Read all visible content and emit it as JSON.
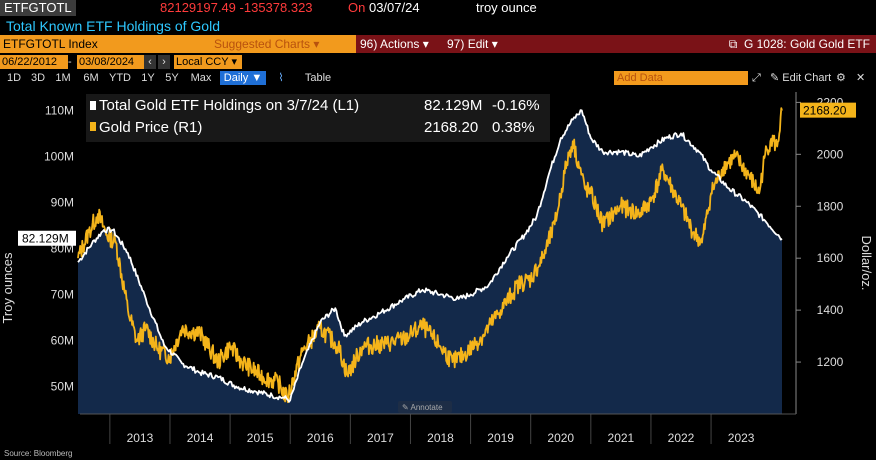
{
  "header": {
    "ticker": "ETFGTOTL",
    "price_change": "82129197.49 -135378.323",
    "date_prefix": "On",
    "date": "03/07/24",
    "unit": "troy ounce",
    "description": "Total Known ETF Holdings of Gold"
  },
  "menubar": {
    "security": "ETFGTOTL Index",
    "suggested": "Suggested Charts",
    "actions": "Actions",
    "actions_key": "96)",
    "edit": "Edit",
    "edit_key": "97)",
    "chart_ref": "G 1028: Gold Gold ETF"
  },
  "dates": {
    "start": "06/22/2012",
    "end": "03/08/2024",
    "currency": "Local CCY"
  },
  "periods": [
    "1D",
    "3D",
    "1M",
    "6M",
    "YTD",
    "1Y",
    "5Y",
    "Max"
  ],
  "frequency": "Daily",
  "table_label": "Table",
  "add_data": "Add Data",
  "edit_chart": "Edit Chart",
  "annotate": "Annotate",
  "footer": "Source: Bloomberg",
  "colors": {
    "etf": "#ffffff",
    "gold": "#f4b41a",
    "area": "#13294a",
    "menu": "#7a1217",
    "accent": "#f29a1d"
  },
  "chart_data": {
    "type": "line",
    "series": [
      {
        "name": "Total Gold ETF Holdings on 3/7/24 (L1)",
        "axis": "left",
        "last_value": "82.129M",
        "change": "-0.16%",
        "x": [
          2012.47,
          2012.7,
          2012.9,
          2013.05,
          2013.3,
          2013.6,
          2013.9,
          2014.2,
          2014.5,
          2014.8,
          2015.1,
          2015.4,
          2015.7,
          2015.9,
          2016.0,
          2016.2,
          2016.5,
          2016.75,
          2016.9,
          2017.2,
          2017.5,
          2017.9,
          2018.2,
          2018.5,
          2018.8,
          2019.0,
          2019.3,
          2019.6,
          2019.9,
          2020.1,
          2020.3,
          2020.5,
          2020.7,
          2020.85,
          2021.0,
          2021.2,
          2021.5,
          2021.8,
          2022.0,
          2022.25,
          2022.5,
          2022.8,
          2023.0,
          2023.3,
          2023.6,
          2023.9,
          2024.18
        ],
        "values": [
          77,
          81,
          84,
          84,
          79,
          69,
          59,
          55,
          53,
          52,
          50,
          49,
          48,
          47.5,
          47,
          55,
          64,
          67,
          61,
          64,
          66,
          69,
          71,
          70,
          69,
          70,
          72,
          78,
          83,
          87,
          96,
          104,
          108,
          110,
          104,
          101,
          101,
          100,
          102,
          104,
          105,
          101,
          97,
          93,
          90,
          86,
          82.1
        ]
      },
      {
        "name": "Gold Price (R1)",
        "axis": "right",
        "last_value": "2168.20",
        "change": "0.38%",
        "x": [
          2012.47,
          2012.65,
          2012.8,
          2012.95,
          2013.1,
          2013.3,
          2013.45,
          2013.6,
          2013.8,
          2014.0,
          2014.2,
          2014.5,
          2014.8,
          2015.0,
          2015.2,
          2015.5,
          2015.8,
          2015.95,
          2016.2,
          2016.5,
          2016.8,
          2016.95,
          2017.2,
          2017.6,
          2017.9,
          2018.2,
          2018.5,
          2018.7,
          2018.9,
          2019.2,
          2019.5,
          2019.8,
          2020.0,
          2020.2,
          2020.4,
          2020.6,
          2020.7,
          2020.9,
          2021.0,
          2021.2,
          2021.5,
          2021.8,
          2022.0,
          2022.2,
          2022.5,
          2022.7,
          2022.85,
          2023.0,
          2023.2,
          2023.4,
          2023.6,
          2023.8,
          2023.9,
          2024.0,
          2024.1,
          2024.18
        ],
        "values": [
          1600,
          1700,
          1770,
          1690,
          1660,
          1400,
          1280,
          1330,
          1250,
          1220,
          1330,
          1310,
          1200,
          1260,
          1200,
          1150,
          1120,
          1060,
          1240,
          1330,
          1260,
          1150,
          1260,
          1270,
          1290,
          1340,
          1260,
          1200,
          1230,
          1300,
          1400,
          1500,
          1520,
          1600,
          1730,
          1970,
          2050,
          1870,
          1850,
          1730,
          1800,
          1770,
          1820,
          1940,
          1800,
          1700,
          1660,
          1850,
          1950,
          1990,
          1930,
          1850,
          2000,
          2060,
          2030,
          2168.2
        ]
      }
    ],
    "x_ticks": [
      "2013",
      "2014",
      "2015",
      "2016",
      "2017",
      "2018",
      "2019",
      "2020",
      "2021",
      "2022",
      "2023"
    ],
    "y_left": {
      "label": "Troy ounces",
      "ticks": [
        "50M",
        "60M",
        "70M",
        "80M",
        "90M",
        "100M",
        "110M"
      ],
      "range": [
        44,
        114
      ]
    },
    "y_right": {
      "label": "Dollar/oz.",
      "ticks": [
        "1200",
        "1400",
        "1600",
        "1800",
        "2000",
        "2200"
      ],
      "range": [
        1000,
        2240
      ]
    },
    "x_range": [
      2012.47,
      2024.18
    ],
    "legend_position": "top-left"
  }
}
